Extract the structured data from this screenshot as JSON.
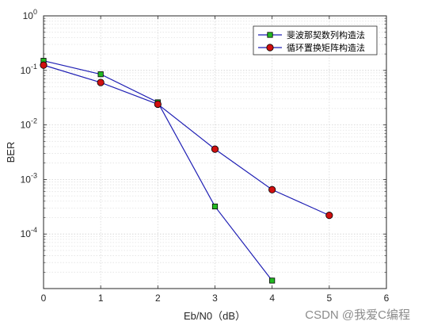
{
  "chart_data": {
    "type": "line",
    "xlabel": "Eb/N0（dB）",
    "ylabel": "BER",
    "xlim": [
      0,
      6
    ],
    "ylim": [
      1e-05,
      1
    ],
    "yscale": "log",
    "grid": true,
    "legend_position": "top-right",
    "x_ticks": [
      "0",
      "1",
      "2",
      "3",
      "4",
      "5",
      "6"
    ],
    "y_ticks": [
      {
        "value": 1,
        "base": "10",
        "exp": "0"
      },
      {
        "value": 0.1,
        "base": "10",
        "exp": "-1"
      },
      {
        "value": 0.01,
        "base": "10",
        "exp": "-2"
      },
      {
        "value": 0.001,
        "base": "10",
        "exp": "-3"
      },
      {
        "value": 0.0001,
        "base": "10",
        "exp": "-4"
      }
    ],
    "series": [
      {
        "name": "斐波那契数列构造法",
        "marker": "square",
        "line_color": "#1f1fb4",
        "marker_color": "#22b922",
        "x": [
          0,
          1,
          2,
          3,
          4
        ],
        "y": [
          0.15,
          0.085,
          0.026,
          0.00032,
          1.4e-05
        ]
      },
      {
        "name": "循环置换矩阵构造法",
        "marker": "circle",
        "line_color": "#1f1fb4",
        "marker_color": "#d01010",
        "x": [
          0,
          1,
          2,
          3,
          4,
          5
        ],
        "y": [
          0.125,
          0.06,
          0.024,
          0.0036,
          0.00065,
          0.00022
        ]
      }
    ]
  },
  "watermark": "CSDN @我爱C编程"
}
